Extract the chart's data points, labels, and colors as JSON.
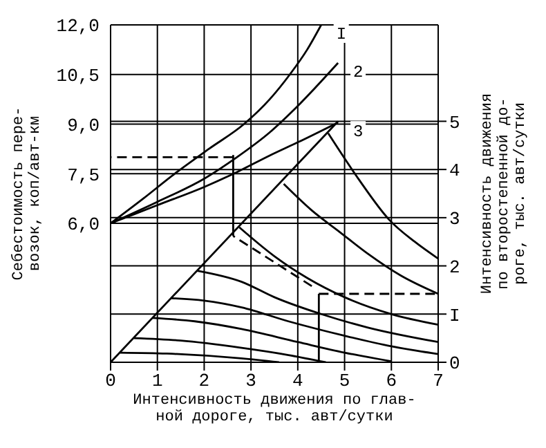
{
  "chart_data": {
    "type": "line",
    "xlabel": "Интенсивность движения по глав-\nной дороге, тыс. авт/сутки",
    "ylabel": "Себестоимость пере-\nвозок, коп/авт-км",
    "y2label": "Интенсивность движения\nпо второстепенной до-\nроге, тыс. авт/сутки",
    "xlim": [
      0,
      7
    ],
    "xticks": [
      0,
      1,
      2,
      3,
      4,
      5,
      6,
      7
    ],
    "ylim": [
      1.8,
      12
    ],
    "yticks": [
      {
        "value": 6,
        "label": "6,0"
      },
      {
        "value": 7.5,
        "label": "7,5"
      },
      {
        "value": 9,
        "label": "9,0"
      },
      {
        "value": 10.5,
        "label": "10,5"
      },
      {
        "value": 12,
        "label": "12,0"
      }
    ],
    "y2lim": [
      0,
      7
    ],
    "y2ticks": [
      0,
      {
        "value": 1,
        "label": "I"
      },
      2,
      3,
      4,
      5
    ],
    "grid": true,
    "marker": "none",
    "series": [
      {
        "name": "I",
        "color": "#000000",
        "axis": "y",
        "line_style": "solid",
        "x": [
          0,
          0.7,
          1.37,
          2.1,
          2.85,
          3.4,
          3.83,
          4.2,
          4.5
        ],
        "values": [
          6.0,
          6.75,
          7.5,
          8.25,
          9.0,
          9.75,
          10.5,
          11.25,
          12.0
        ]
      },
      {
        "name": "2",
        "color": "#000000",
        "axis": "y",
        "line_style": "solid",
        "x": [
          0,
          1,
          2,
          2.7,
          3.4,
          4,
          4.86
        ],
        "values": [
          6.0,
          6.65,
          7.35,
          8.0,
          8.75,
          9.55,
          10.85
        ]
      },
      {
        "name": "3",
        "color": "#000000",
        "axis": "y",
        "line_style": "solid",
        "x": [
          0,
          1,
          2,
          2.7,
          3.4,
          4,
          4.86
        ],
        "values": [
          6.0,
          6.55,
          7.1,
          7.55,
          8.05,
          8.45,
          9.05
        ]
      },
      {
        "color": "#000000",
        "axis": "y2",
        "line_style": "solid",
        "x": [
          0,
          4.86
        ],
        "values": [
          0,
          5.0
        ]
      },
      {
        "color": "#000000",
        "axis": "y2",
        "line_style": "solid",
        "x": [
          4.65,
          5.3,
          5.96,
          6.5,
          7
        ],
        "values": [
          4.75,
          3.8,
          2.95,
          2.5,
          2.15
        ]
      },
      {
        "color": "#000000",
        "axis": "y2",
        "line_style": "solid",
        "x": [
          3.7,
          4.3,
          4.9,
          5.5,
          6.2,
          7
        ],
        "values": [
          3.7,
          3.15,
          2.7,
          2.25,
          1.8,
          1.42
        ]
      },
      {
        "color": "#000000",
        "axis": "y2",
        "line_style": "solid",
        "x": [
          2.75,
          3.5,
          4.2,
          5,
          6,
          7
        ],
        "values": [
          2.8,
          2.2,
          1.75,
          1.35,
          1.0,
          0.78
        ]
      },
      {
        "color": "#000000",
        "axis": "y2",
        "line_style": "solid",
        "x": [
          1.85,
          2.8,
          3.5,
          4.5,
          5.5,
          7
        ],
        "values": [
          1.9,
          1.67,
          1.35,
          1.0,
          0.72,
          0.42
        ]
      },
      {
        "color": "#000000",
        "axis": "y2",
        "line_style": "solid",
        "x": [
          1.3,
          2.0,
          2.8,
          3.8,
          5,
          6,
          7
        ],
        "values": [
          1.33,
          1.28,
          1.14,
          0.85,
          0.55,
          0.33,
          0.17
        ]
      },
      {
        "color": "#000000",
        "axis": "y2",
        "line_style": "solid",
        "x": [
          0.9,
          1.8,
          2.8,
          4,
          5,
          6
        ],
        "values": [
          0.92,
          0.85,
          0.69,
          0.42,
          0.2,
          0.02
        ]
      },
      {
        "color": "#000000",
        "axis": "y2",
        "line_style": "solid",
        "x": [
          0.5,
          1.5,
          2.8,
          3.8,
          4.6
        ],
        "values": [
          0.5,
          0.45,
          0.3,
          0.15,
          0
        ]
      },
      {
        "color": "#000000",
        "axis": "y2",
        "line_style": "solid",
        "x": [
          0.2,
          1.2,
          2.8,
          3.6
        ],
        "values": [
          0.2,
          0.18,
          0.08,
          0
        ]
      },
      {
        "color": "#000000",
        "axis": "y2",
        "line_style": "solid",
        "x": [
          4.45,
          4.45
        ],
        "values": [
          0,
          1.42
        ]
      },
      {
        "color": "#000000",
        "axis": "y2",
        "line_style": "dashed",
        "x": [
          4.45,
          7
        ],
        "values": [
          1.42,
          1.42
        ]
      },
      {
        "color": "#000000",
        "axis": "y2",
        "line_style": "dashed",
        "x": [
          4.3,
          2.62
        ],
        "values": [
          1.58,
          2.62
        ]
      },
      {
        "color": "#000000",
        "axis": "y2",
        "line_style": "solid",
        "x": [
          2.62,
          2.62
        ],
        "values": [
          2.62,
          4.3
        ]
      },
      {
        "color": "#000000",
        "axis": "y",
        "line_style": "dashed",
        "x": [
          2.62,
          0
        ],
        "values": [
          8.0,
          8.0
        ]
      }
    ]
  }
}
